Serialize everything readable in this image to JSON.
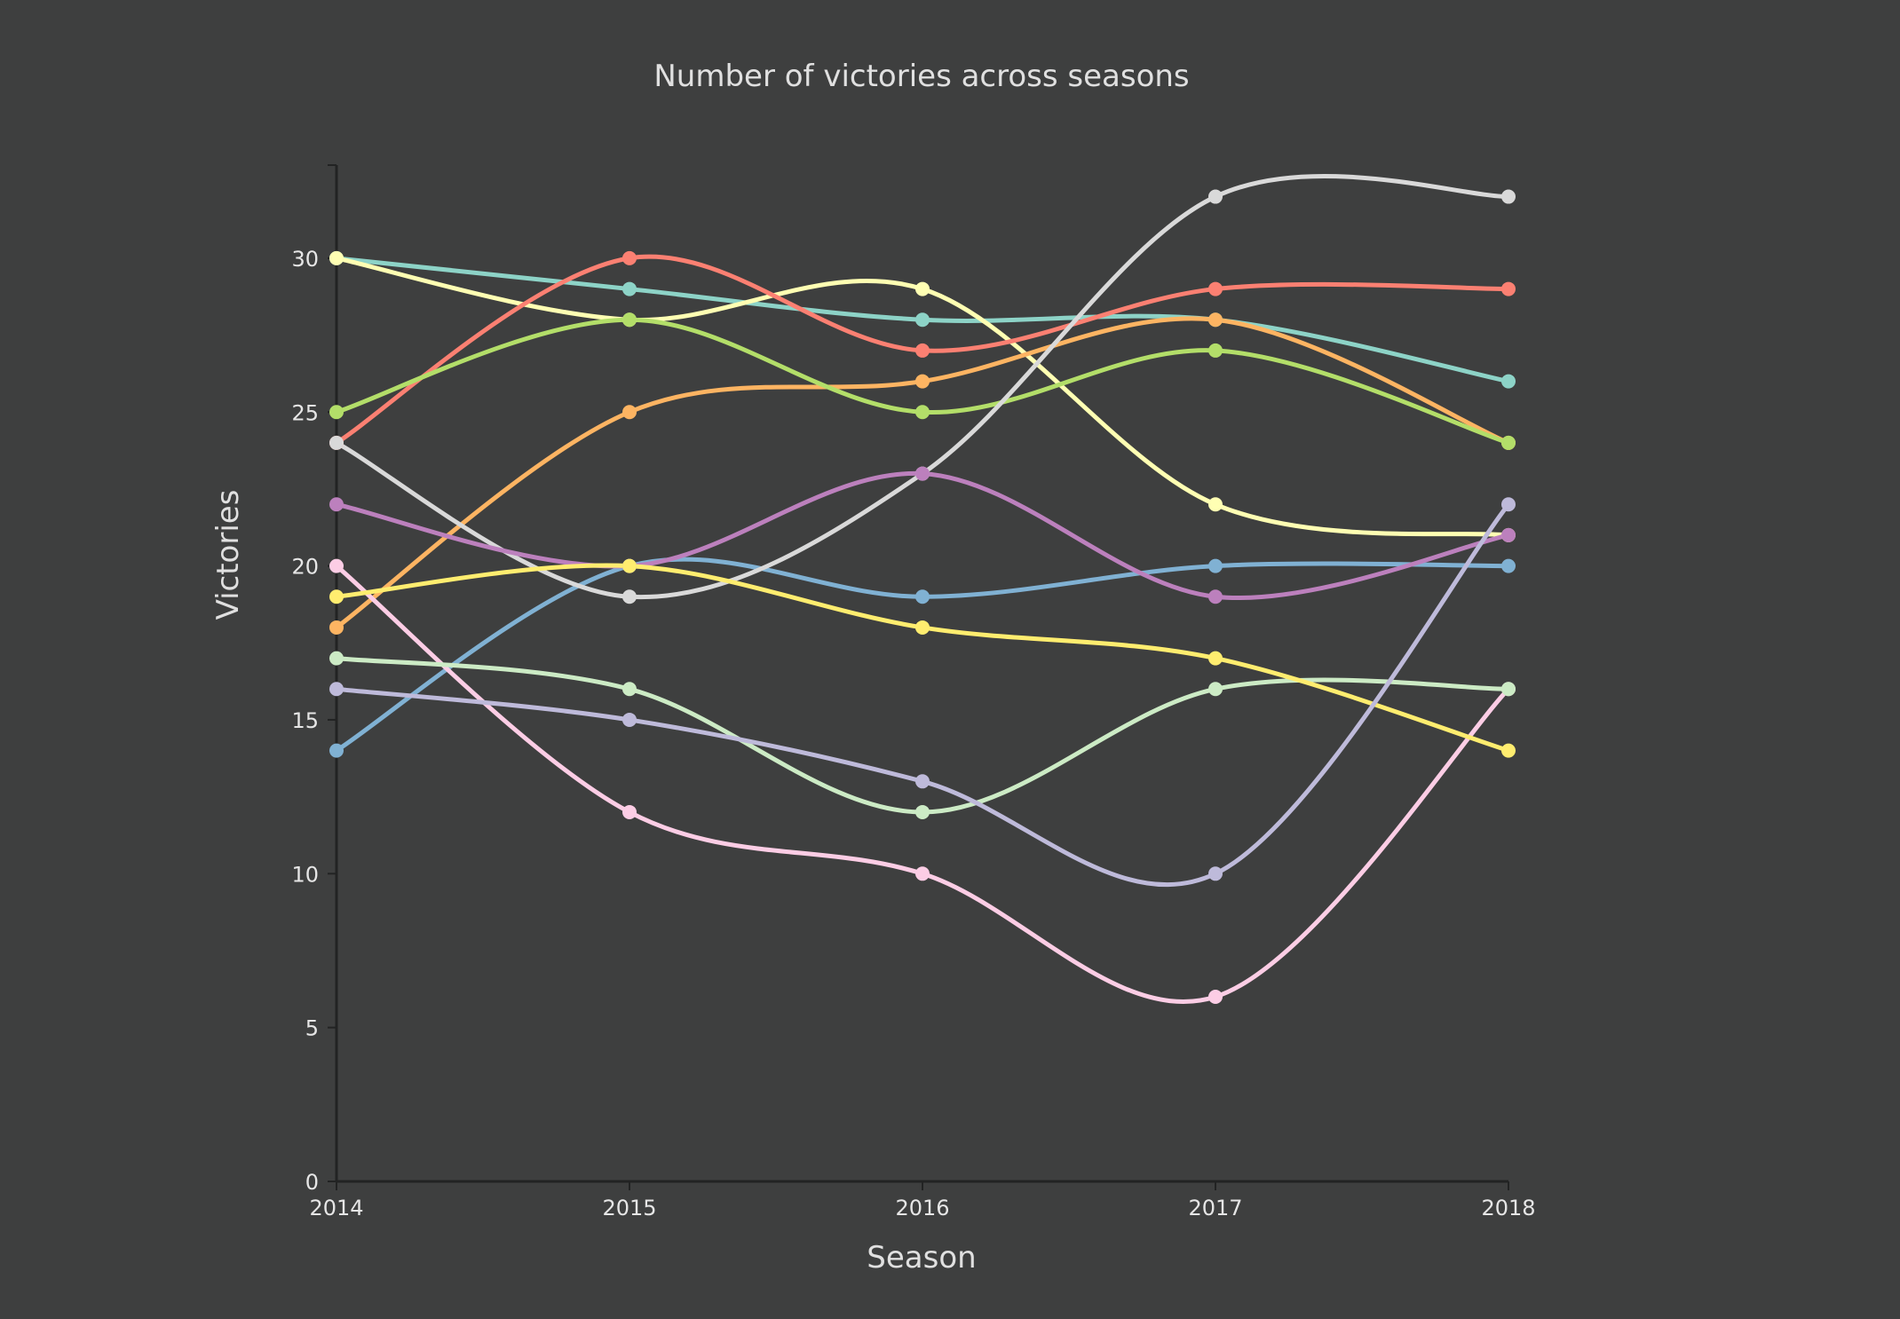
{
  "chart_data": {
    "type": "line",
    "title": "Number of victories across seasons",
    "xlabel": "Season",
    "ylabel": "Victories",
    "x": [
      2014,
      2015,
      2016,
      2017,
      2018
    ],
    "x_tick_labels": [
      "2014",
      "2015",
      "2016",
      "2017",
      "2018"
    ],
    "ylim": [
      0,
      33
    ],
    "y_ticks": [
      0,
      5,
      10,
      15,
      20,
      25,
      30
    ],
    "y_tick_labels": [
      "0",
      "5",
      "10",
      "15",
      "20",
      "25",
      "30"
    ],
    "grid": false,
    "legend": "none",
    "smooth": true,
    "background_color": "#3e3f3f",
    "series": [
      {
        "color": "#8dd3c7",
        "values": [
          30,
          29,
          28,
          28,
          26
        ]
      },
      {
        "color": "#ffffb3",
        "values": [
          30,
          28,
          29,
          22,
          21
        ]
      },
      {
        "color": "#fb8072",
        "values": [
          24,
          30,
          27,
          29,
          29
        ]
      },
      {
        "color": "#80b1d3",
        "values": [
          14,
          20,
          19,
          20,
          20
        ]
      },
      {
        "color": "#fdb462",
        "values": [
          18,
          25,
          26,
          28,
          24
        ]
      },
      {
        "color": "#b3de69",
        "values": [
          25,
          28,
          25,
          27,
          24
        ]
      },
      {
        "color": "#fccde5",
        "values": [
          20,
          12,
          10,
          6,
          16
        ]
      },
      {
        "color": "#d9d9d9",
        "values": [
          24,
          19,
          23,
          32,
          32
        ]
      },
      {
        "color": "#bc80bd",
        "values": [
          22,
          20,
          23,
          19,
          21
        ]
      },
      {
        "color": "#ccebc5",
        "values": [
          17,
          16,
          12,
          16,
          16
        ]
      },
      {
        "color": "#ffed6f",
        "values": [
          19,
          20,
          18,
          17,
          14
        ]
      },
      {
        "color": "#bebada",
        "values": [
          16,
          15,
          13,
          10,
          22
        ]
      }
    ]
  }
}
